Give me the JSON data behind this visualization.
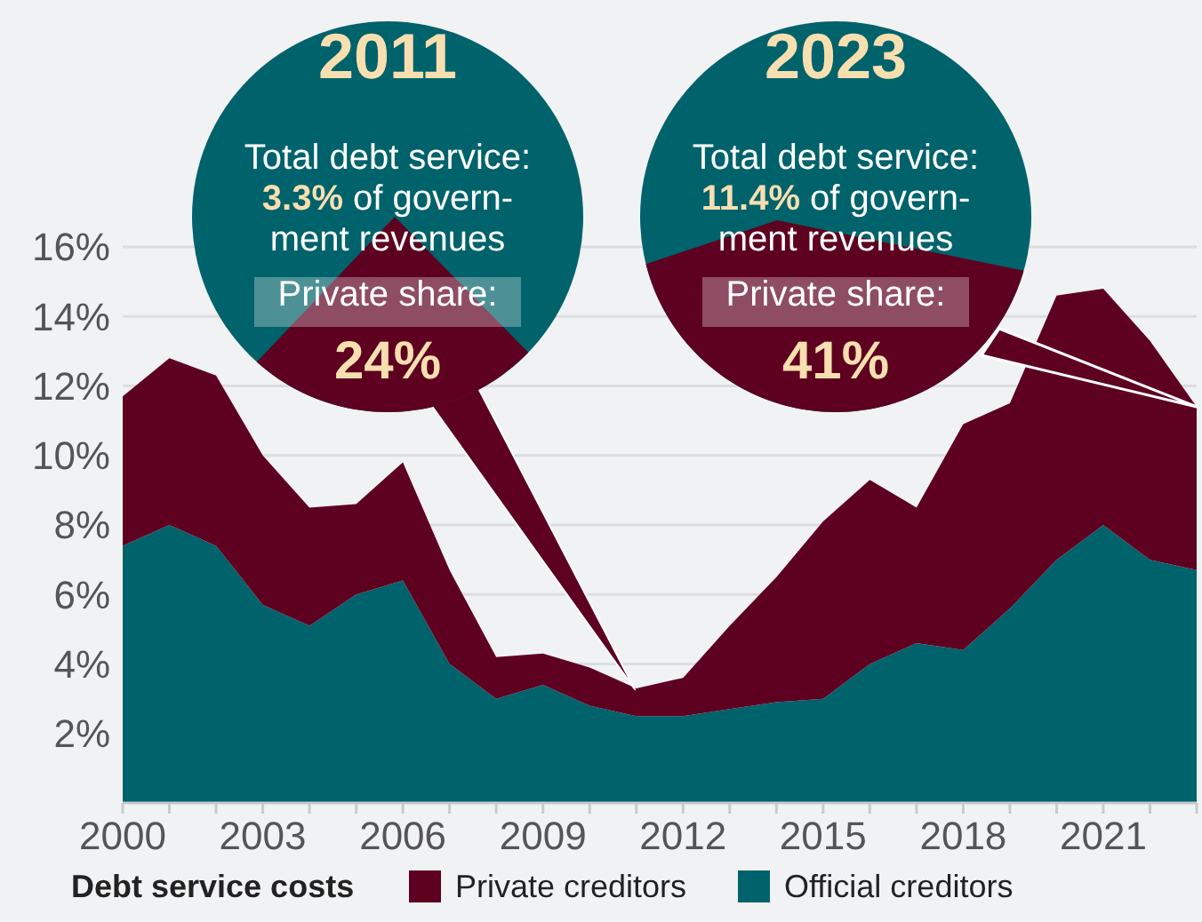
{
  "chart_data": {
    "type": "area",
    "stacked": true,
    "x": [
      2000,
      2001,
      2002,
      2003,
      2004,
      2005,
      2006,
      2007,
      2008,
      2009,
      2010,
      2011,
      2012,
      2013,
      2014,
      2015,
      2016,
      2017,
      2018,
      2019,
      2020,
      2021,
      2022,
      2023
    ],
    "series": [
      {
        "name": "Official creditors",
        "color": "#00626b",
        "values": [
          7.4,
          8.0,
          7.4,
          5.7,
          5.1,
          6.0,
          6.4,
          4.0,
          3.0,
          3.4,
          2.8,
          2.5,
          2.5,
          2.7,
          2.9,
          3.0,
          4.0,
          4.6,
          4.4,
          5.6,
          7.0,
          8.0,
          7.0,
          6.7
        ]
      },
      {
        "name": "Private creditors",
        "color": "#5e0020",
        "values": [
          4.3,
          4.8,
          4.9,
          4.3,
          3.4,
          2.6,
          3.4,
          2.7,
          1.2,
          0.9,
          1.1,
          0.8,
          1.1,
          2.4,
          3.6,
          5.1,
          5.3,
          3.9,
          6.5,
          5.9,
          7.6,
          6.8,
          6.3,
          4.7
        ]
      }
    ],
    "xlim": [
      2000,
      2023
    ],
    "xticks": [
      2000,
      {
        "value": 2001,
        "label": null
      },
      {
        "value": 2002,
        "label": null
      },
      2003,
      {
        "value": 2004,
        "label": null
      },
      {
        "value": 2005,
        "label": null
      },
      2006,
      {
        "value": 2007,
        "label": null
      },
      {
        "value": 2008,
        "label": null
      },
      2009,
      {
        "value": 2010,
        "label": null
      },
      {
        "value": 2011,
        "label": null
      },
      2012,
      {
        "value": 2013,
        "label": null
      },
      {
        "value": 2014,
        "label": null
      },
      2015,
      {
        "value": 2016,
        "label": null
      },
      {
        "value": 2017,
        "label": null
      },
      2018,
      {
        "value": 2019,
        "label": null
      },
      {
        "value": 2020,
        "label": null
      },
      2021,
      {
        "value": 2022,
        "label": null
      },
      {
        "value": 2023,
        "label": null
      }
    ],
    "ylim": [
      0,
      16
    ],
    "yticks": [
      {
        "value": 2,
        "label": "2%"
      },
      {
        "value": 4,
        "label": "4%"
      },
      {
        "value": 6,
        "label": "6%"
      },
      {
        "value": 8,
        "label": "8%"
      },
      {
        "value": 10,
        "label": "10%"
      },
      {
        "value": 12,
        "label": "12%"
      },
      {
        "value": 14,
        "label": "14%"
      },
      {
        "value": 16,
        "label": "16%"
      }
    ],
    "grid": "y",
    "legend": "bottom",
    "legend_title": "Debt service costs",
    "annotations": [
      "2011\nTotal debt service:\n3.3% of govern-\nment revenues\nPrivate share:\n24%",
      {
        "text": "2023\nTotal debt service:\n11.4% of govern-\nment revenues\nPrivate share:\n41%",
        "x": 2023,
        "y": 11.4
      }
    ]
  }
}
